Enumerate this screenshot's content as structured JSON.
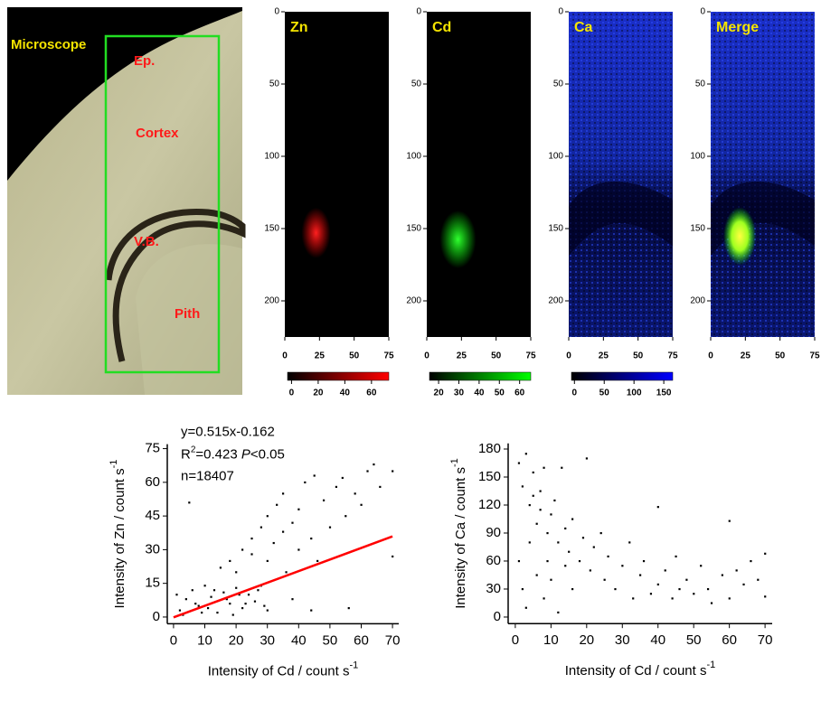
{
  "microscope": {
    "title": "Microscope",
    "labels": [
      "Ep.",
      "Cortex",
      "V.B.",
      "Pith"
    ]
  },
  "chart_data": [
    {
      "type": "heatmap",
      "title": "Zn",
      "xlim": [
        0,
        75
      ],
      "ylim": [
        0,
        225
      ],
      "xticks": [
        0,
        25,
        50,
        75
      ],
      "yticks": [
        0,
        50,
        100,
        150,
        200
      ],
      "colorbar": {
        "lim": [
          -3,
          73
        ],
        "ticks": [
          0,
          20,
          40,
          60
        ],
        "colors": [
          "#000000",
          "#ff0000"
        ]
      }
    },
    {
      "type": "heatmap",
      "title": "Cd",
      "xlim": [
        0,
        75
      ],
      "ylim": [
        0,
        225
      ],
      "xticks": [
        0,
        25,
        50,
        75
      ],
      "yticks": [
        0,
        50,
        100,
        150,
        200
      ],
      "colorbar": {
        "lim": [
          15.5,
          65.5
        ],
        "ticks": [
          20,
          30,
          40,
          50,
          60
        ],
        "colors": [
          "#000000",
          "#00ff00"
        ]
      }
    },
    {
      "type": "heatmap",
      "title": "Ca",
      "xlim": [
        0,
        75
      ],
      "ylim": [
        0,
        225
      ],
      "xticks": [
        0,
        25,
        50,
        75
      ],
      "yticks": [
        0,
        50,
        100,
        150,
        200
      ],
      "colorbar": {
        "lim": [
          -5,
          165
        ],
        "ticks": [
          0,
          50,
          100,
          150
        ],
        "colors": [
          "#000000",
          "#0000ff"
        ]
      }
    },
    {
      "type": "heatmap",
      "title": "Merge",
      "xlim": [
        0,
        75
      ],
      "ylim": [
        0,
        225
      ],
      "xticks": [
        0,
        25,
        50,
        75
      ],
      "yticks": [
        0,
        50,
        100,
        150,
        200
      ]
    },
    {
      "type": "scatter",
      "xlabel": {
        "text": "Intensity of Cd / count s",
        "sup": "-1"
      },
      "ylabel": {
        "text": "Intensity of Zn / count s",
        "sup": "-1"
      },
      "annotations": {
        "equation": "y=0.515x-0.162",
        "r": "R",
        "r_sup": "2",
        "r_value": "=0.423 ",
        "p": "P",
        "p_value": "<0.05",
        "n": "n=18407"
      },
      "xlim": [
        -2,
        72
      ],
      "ylim": [
        -3,
        77
      ],
      "xticks": [
        0,
        10,
        20,
        30,
        40,
        50,
        60,
        70
      ],
      "yticks": [
        0,
        15,
        30,
        45,
        60,
        75
      ],
      "color": "#000000",
      "x": [
        2,
        4,
        6,
        8,
        10,
        12,
        14,
        16,
        18,
        20,
        22,
        24,
        26,
        28,
        30,
        5,
        15,
        18,
        20,
        22,
        25,
        25,
        28,
        30,
        30,
        32,
        33,
        35,
        35,
        36,
        38,
        40,
        40,
        42,
        44,
        45,
        46,
        48,
        50,
        52,
        54,
        55,
        58,
        60,
        62,
        64,
        66,
        70,
        70,
        56,
        44,
        38,
        1,
        3,
        7,
        9,
        11,
        13,
        17,
        19,
        21,
        23,
        27,
        29
      ],
      "y": [
        3,
        8,
        12,
        5,
        14,
        9,
        2,
        11,
        6,
        13,
        4,
        10,
        7,
        14,
        3,
        51,
        22,
        25,
        20,
        30,
        28,
        35,
        40,
        25,
        45,
        33,
        50,
        38,
        55,
        20,
        42,
        30,
        48,
        60,
        35,
        63,
        25,
        52,
        40,
        58,
        62,
        45,
        55,
        50,
        65,
        68,
        58,
        65,
        27,
        4,
        3,
        8,
        10,
        1,
        6,
        2,
        4,
        12,
        8,
        1,
        10,
        6,
        12,
        5
      ],
      "fit_line": {
        "color": "#ff0000",
        "x": [
          0,
          70
        ],
        "y": [
          -0.162,
          35.9
        ]
      }
    },
    {
      "type": "scatter",
      "xlabel": {
        "text": "Intensity of Cd / count s",
        "sup": "-1"
      },
      "ylabel": {
        "text": "Intensity of Ca / count s",
        "sup": "-1"
      },
      "xlim": [
        -2,
        72
      ],
      "ylim": [
        -7,
        186
      ],
      "xticks": [
        0,
        10,
        20,
        30,
        40,
        50,
        60,
        70
      ],
      "yticks": [
        0,
        30,
        60,
        90,
        120,
        150,
        180
      ],
      "color": "#000000",
      "x": [
        1,
        2,
        3,
        4,
        5,
        6,
        7,
        8,
        9,
        10,
        11,
        12,
        13,
        14,
        15,
        16,
        18,
        19,
        20,
        21,
        22,
        24,
        25,
        26,
        28,
        30,
        32,
        33,
        35,
        36,
        38,
        40,
        40,
        42,
        44,
        45,
        46,
        48,
        50,
        52,
        54,
        55,
        58,
        60,
        60,
        62,
        64,
        66,
        68,
        70,
        70,
        3,
        8,
        12,
        16,
        1,
        2,
        4,
        6,
        9,
        5,
        7,
        10,
        14
      ],
      "y": [
        165,
        140,
        175,
        120,
        155,
        100,
        135,
        160,
        90,
        110,
        125,
        80,
        160,
        95,
        70,
        105,
        60,
        85,
        170,
        50,
        75,
        90,
        40,
        65,
        30,
        55,
        80,
        20,
        45,
        60,
        25,
        118,
        35,
        50,
        20,
        65,
        30,
        40,
        25,
        55,
        30,
        15,
        45,
        103,
        20,
        50,
        35,
        60,
        40,
        68,
        22,
        10,
        20,
        5,
        30,
        60,
        30,
        80,
        45,
        60,
        130,
        115,
        40,
        55
      ]
    }
  ]
}
